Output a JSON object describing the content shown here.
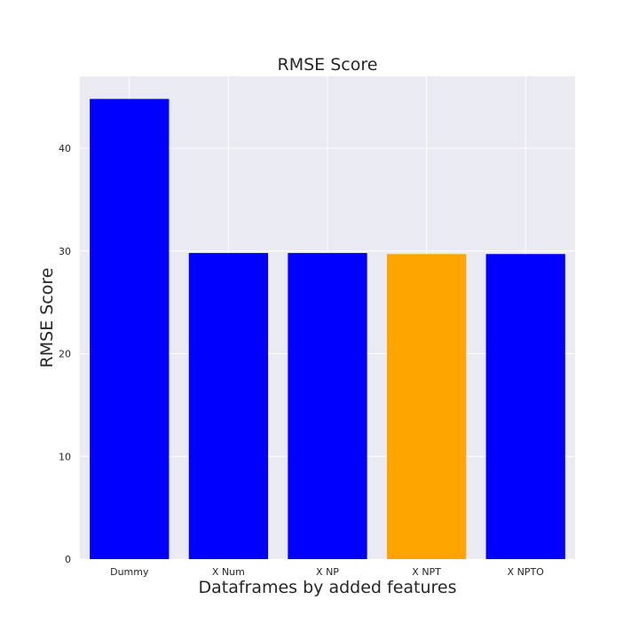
{
  "chart_data": {
    "type": "bar",
    "title": "RMSE Score",
    "xlabel": "Dataframes by added features",
    "ylabel": "RMSE Score",
    "categories": [
      "Dummy",
      "X Num",
      "X NP",
      "X NPT",
      "X NPTO"
    ],
    "values": [
      44.8,
      29.8,
      29.8,
      29.7,
      29.7
    ],
    "bar_colors": [
      "#0000ff",
      "#0000ff",
      "#0000ff",
      "#ffa500",
      "#0000ff"
    ],
    "ylim": [
      0,
      47
    ],
    "yticks": [
      0,
      10,
      20,
      30,
      40
    ],
    "grid": true,
    "background_color": "#eaeaf2",
    "grid_color": "#ffffff"
  }
}
